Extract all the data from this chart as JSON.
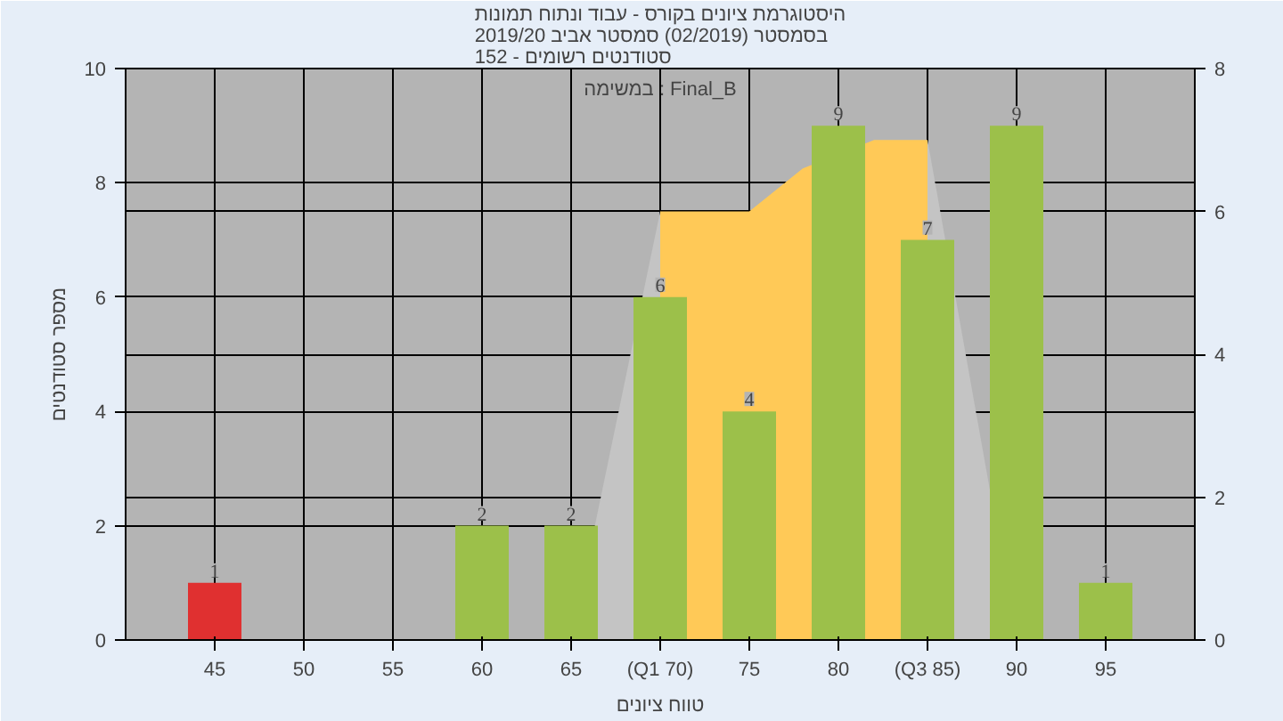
{
  "chart_data": {
    "type": "bar",
    "title": "היסטוגרמת ציונים בקורס - עבוד ונתוח תמונות\nבסמסטר  (02/2019)  סמסטר אביב 2019/20\nסטודנטים רשומים - 152",
    "xlabel": "טווח ציונים",
    "ylabel": "מספר סטודנטים",
    "annotations": [
      "במשימה : Final_B"
    ],
    "x": [
      45,
      60,
      65,
      70,
      75,
      80,
      85,
      90,
      95
    ],
    "xlim": [
      40,
      100
    ],
    "xticks": [
      45,
      50,
      55,
      60,
      65,
      {
        "value": 70,
        "label": "(Q1 70)"
      },
      75,
      80,
      {
        "value": 85,
        "label": "(Q3 85)"
      },
      90,
      95
    ],
    "ylim": [
      0,
      10
    ],
    "yticks": [
      0,
      2,
      4,
      6,
      8,
      10
    ],
    "y2lim": [
      0,
      8
    ],
    "y2ticks": [
      0,
      2,
      4,
      6,
      8
    ],
    "series": [
      {
        "type": "area",
        "axis": "y2",
        "color": "#c4c4c4",
        "x": [
          65,
          70
        ],
        "values": [
          0,
          6
        ]
      },
      {
        "type": "area",
        "axis": "y2",
        "color": "#c4c4c4",
        "x": [
          85,
          90
        ],
        "values": [
          7,
          0
        ]
      },
      {
        "type": "area",
        "axis": "y2",
        "color": "#ffc957",
        "x": [
          70,
          75,
          78,
          82,
          85
        ],
        "values": [
          6,
          6,
          6.6,
          7,
          7
        ]
      },
      {
        "colors": [
          "#e03030",
          "#9cc04a",
          "#9cc04a",
          "#9cc04a",
          "#9cc04a",
          "#9cc04a",
          "#9cc04a",
          "#9cc04a",
          "#9cc04a"
        ],
        "values": [
          1,
          2,
          2,
          6,
          4,
          9,
          7,
          9,
          1
        ],
        "value_labels": [
          "1",
          "2",
          "2",
          "6",
          "4",
          "9",
          "7",
          "9",
          "1"
        ]
      }
    ],
    "grid": true
  }
}
